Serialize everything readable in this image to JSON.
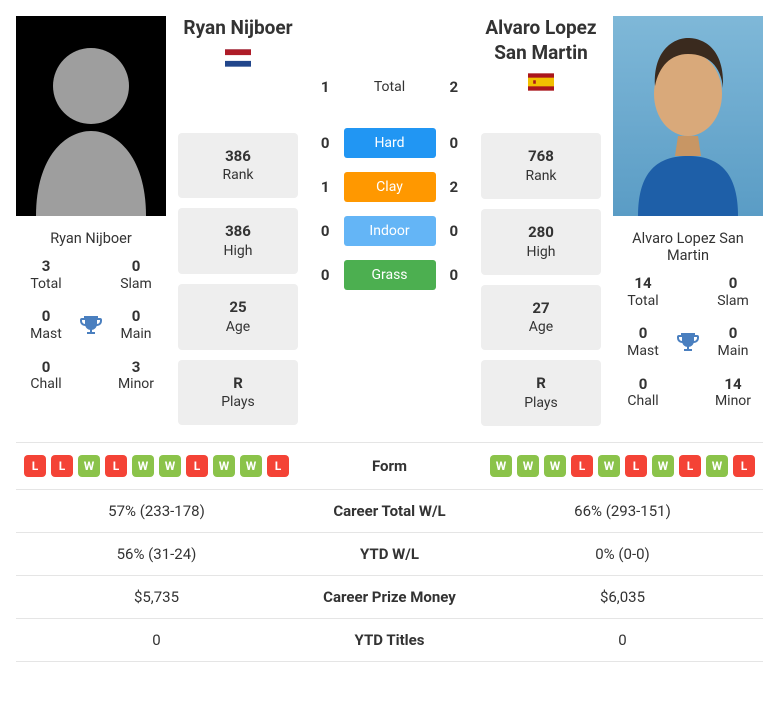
{
  "player1": {
    "name": "Ryan Nijboer",
    "flag": {
      "colors": [
        "#21468b",
        "#ffffff",
        "#ae1c28"
      ],
      "style": "h3"
    },
    "photo": "silhouette",
    "titles": {
      "total": {
        "value": "3",
        "label": "Total"
      },
      "slam": {
        "value": "0",
        "label": "Slam"
      },
      "mast": {
        "value": "0",
        "label": "Mast"
      },
      "main": {
        "value": "0",
        "label": "Main"
      },
      "chall": {
        "value": "0",
        "label": "Chall"
      },
      "minor": {
        "value": "3",
        "label": "Minor"
      }
    }
  },
  "player2": {
    "name": "Alvaro Lopez San Martin",
    "flag": {
      "colors": [
        "#aa151b",
        "#f1bf00",
        "#aa151b"
      ],
      "style": "spain"
    },
    "photo": "person",
    "titles": {
      "total": {
        "value": "14",
        "label": "Total"
      },
      "slam": {
        "value": "0",
        "label": "Slam"
      },
      "mast": {
        "value": "0",
        "label": "Mast"
      },
      "main": {
        "value": "0",
        "label": "Main"
      },
      "chall": {
        "value": "0",
        "label": "Chall"
      },
      "minor": {
        "value": "14",
        "label": "Minor"
      }
    }
  },
  "mini1": {
    "rank": {
      "value": "386",
      "label": "Rank"
    },
    "high": {
      "value": "386",
      "label": "High"
    },
    "age": {
      "value": "25",
      "label": "Age"
    },
    "plays": {
      "value": "R",
      "label": "Plays"
    }
  },
  "mini2": {
    "rank": {
      "value": "768",
      "label": "Rank"
    },
    "high": {
      "value": "280",
      "label": "High"
    },
    "age": {
      "value": "27",
      "label": "Age"
    },
    "plays": {
      "value": "R",
      "label": "Plays"
    }
  },
  "h2h": {
    "total": {
      "label": "Total",
      "p1": "1",
      "p2": "2",
      "color": null
    },
    "hard": {
      "label": "Hard",
      "p1": "0",
      "p2": "0",
      "color": "#2196f3"
    },
    "clay": {
      "label": "Clay",
      "p1": "1",
      "p2": "2",
      "color": "#ff9800"
    },
    "indoor": {
      "label": "Indoor",
      "p1": "0",
      "p2": "0",
      "color": "#64b5f6"
    },
    "grass": {
      "label": "Grass",
      "p1": "0",
      "p2": "0",
      "color": "#4caf50"
    }
  },
  "compare": {
    "form": {
      "label": "Form",
      "p1": [
        "L",
        "L",
        "W",
        "L",
        "W",
        "W",
        "L",
        "W",
        "W",
        "L"
      ],
      "p2": [
        "W",
        "W",
        "W",
        "L",
        "W",
        "L",
        "W",
        "L",
        "W",
        "L"
      ]
    },
    "rows": [
      {
        "label": "Career Total W/L",
        "p1": "57% (233-178)",
        "p2": "66% (293-151)"
      },
      {
        "label": "YTD W/L",
        "p1": "56% (31-24)",
        "p2": "0% (0-0)"
      },
      {
        "label": "Career Prize Money",
        "p1": "$5,735",
        "p2": "$6,035"
      },
      {
        "label": "YTD Titles",
        "p1": "0",
        "p2": "0"
      }
    ]
  },
  "style": {
    "chip_win_color": "#8bc34a",
    "chip_loss_color": "#f44336",
    "trophy_color": "#4a7fbf",
    "card_bg": "#eeeeee",
    "border_color": "#e5e5e5"
  }
}
